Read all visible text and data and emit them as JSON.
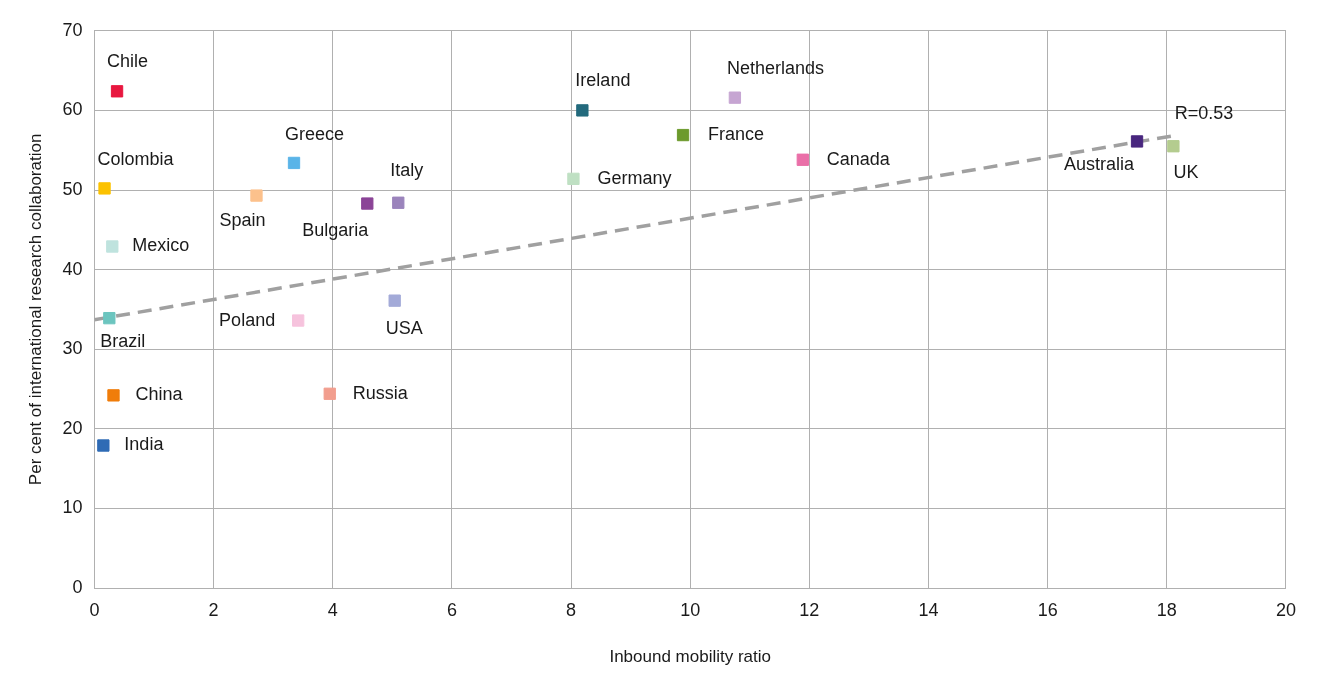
{
  "chart_data": {
    "type": "scatter",
    "xlabel": "Inbound mobility ratio",
    "ylabel": "Per cent of international research collaboration",
    "xlim": [
      0,
      20
    ],
    "ylim": [
      0,
      70
    ],
    "xticks": [
      0,
      2,
      4,
      6,
      8,
      10,
      12,
      14,
      16,
      18,
      20
    ],
    "yticks": [
      0,
      10,
      20,
      30,
      40,
      50,
      60,
      70
    ],
    "grid": true,
    "legend": false,
    "marker": "square",
    "series": [
      {
        "name": "Chile",
        "color": "#e8173f",
        "x": [
          0.38
        ],
        "values": [
          62.4
        ]
      },
      {
        "name": "Colombia",
        "color": "#fcc200",
        "x": [
          0.17
        ],
        "values": [
          50.2
        ]
      },
      {
        "name": "Mexico",
        "color": "#bfe3de",
        "x": [
          0.3
        ],
        "values": [
          42.9
        ]
      },
      {
        "name": "Brazil",
        "color": "#6cc5bf",
        "x": [
          0.25
        ],
        "values": [
          33.9
        ]
      },
      {
        "name": "China",
        "color": "#f07d0a",
        "x": [
          0.32
        ],
        "values": [
          24.2
        ]
      },
      {
        "name": "India",
        "color": "#2f6bb5",
        "x": [
          0.15
        ],
        "values": [
          17.9
        ]
      },
      {
        "name": "Greece",
        "color": "#5ab4e8",
        "x": [
          3.35
        ],
        "values": [
          53.4
        ]
      },
      {
        "name": "Spain",
        "color": "#fcc18c",
        "x": [
          2.72
        ],
        "values": [
          49.3
        ]
      },
      {
        "name": "Bulgaria",
        "color": "#8b4497",
        "x": [
          4.58
        ],
        "values": [
          48.3
        ]
      },
      {
        "name": "Italy",
        "color": "#9b84bc",
        "x": [
          5.1
        ],
        "values": [
          48.4
        ]
      },
      {
        "name": "USA",
        "color": "#a3aad8",
        "x": [
          5.04
        ],
        "values": [
          36.1
        ]
      },
      {
        "name": "Poland",
        "color": "#f6c3dd",
        "x": [
          3.42
        ],
        "values": [
          33.6
        ]
      },
      {
        "name": "Russia",
        "color": "#f29e8e",
        "x": [
          3.95
        ],
        "values": [
          24.4
        ]
      },
      {
        "name": "Ireland",
        "color": "#236a7d",
        "x": [
          8.19
        ],
        "values": [
          60.0
        ]
      },
      {
        "name": "Germany",
        "color": "#bfe0c3",
        "x": [
          8.04
        ],
        "values": [
          51.4
        ]
      },
      {
        "name": "France",
        "color": "#6c9a2c",
        "x": [
          9.88
        ],
        "values": [
          56.9
        ]
      },
      {
        "name": "Netherlands",
        "color": "#c6a5d2",
        "x": [
          10.75
        ],
        "values": [
          61.6
        ]
      },
      {
        "name": "Canada",
        "color": "#ea6fa8",
        "x": [
          11.89
        ],
        "values": [
          53.8
        ]
      },
      {
        "name": "Australia",
        "color": "#48267e",
        "x": [
          17.5
        ],
        "values": [
          56.1
        ]
      },
      {
        "name": "UK",
        "color": "#b4cc8f",
        "x": [
          18.11
        ],
        "values": [
          55.5
        ]
      },
      {
        "type": "line",
        "color": "#a0a0a0",
        "line_style": "dashed",
        "marker": "none",
        "x": [
          0,
          18.1
        ],
        "values": [
          33.7,
          56.8
        ]
      }
    ],
    "annotations": [
      {
        "text": "R=0.53",
        "x": 18.1,
        "y": 56.8
      }
    ]
  }
}
